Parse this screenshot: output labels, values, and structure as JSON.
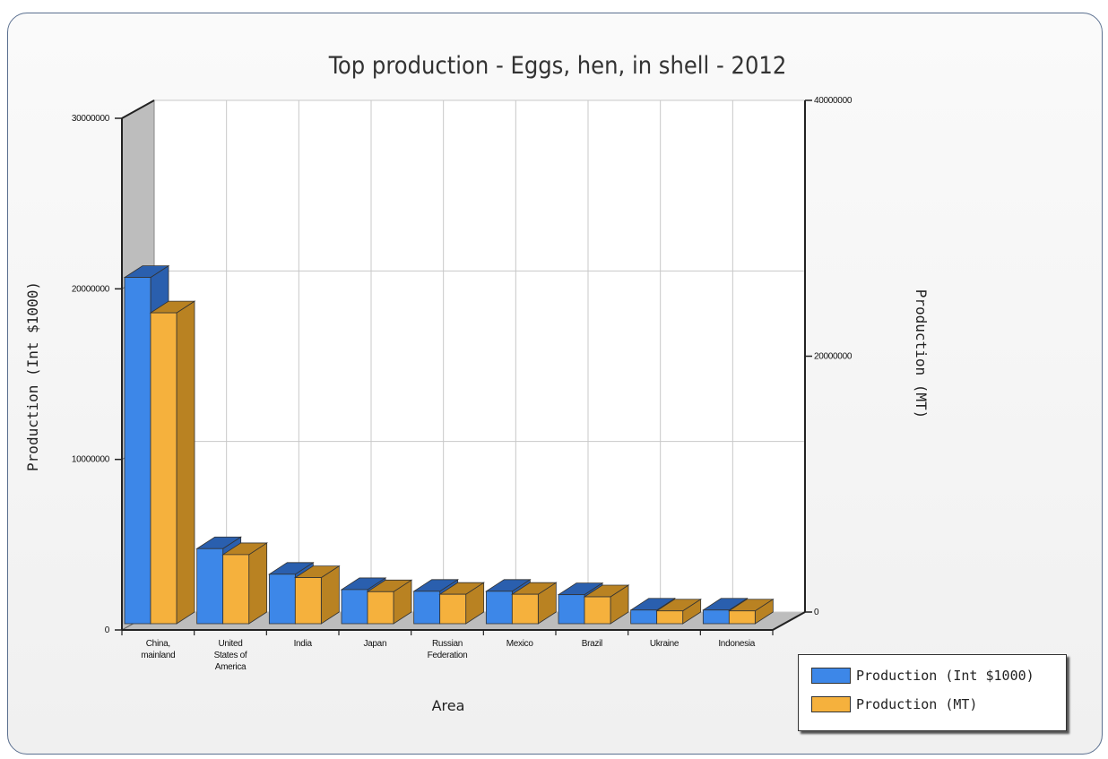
{
  "chart_data": {
    "type": "bar",
    "title": "Top production - Eggs, hen, in shell - 2012",
    "xlabel": "Area",
    "ylabel": "Production (Int $1000)",
    "y2label": "Production (MT)",
    "categories": [
      [
        "China,",
        "mainland"
      ],
      [
        "United",
        "States of",
        "America"
      ],
      [
        "India"
      ],
      [
        "Japan"
      ],
      [
        "Russian",
        "Federation"
      ],
      [
        "Mexico"
      ],
      [
        "Brazil"
      ],
      [
        "Ukraine"
      ],
      [
        "Indonesia"
      ]
    ],
    "series": [
      {
        "name": "Production (Int $1000)",
        "axis": "left",
        "color": "#3d87e8",
        "dark": "#2a5fae",
        "values": [
          20300000,
          4400000,
          2900000,
          2000000,
          1900000,
          1900000,
          1700000,
          800000,
          800000
        ]
      },
      {
        "name": "Production (MT)",
        "axis": "right",
        "color": "#f5b13d",
        "dark": "#b98222",
        "values": [
          24300000,
          5400000,
          3600000,
          2500000,
          2300000,
          2300000,
          2100000,
          1000000,
          1000000
        ]
      }
    ],
    "ylim": [
      0,
      30000000
    ],
    "y2lim": [
      0,
      40000000
    ],
    "yticks": [
      "0",
      "10000000",
      "20000000",
      "30000000"
    ],
    "y2ticks": [
      "0",
      "20000000",
      "40000000"
    ],
    "grid": true,
    "legend_position": "bottom-right"
  }
}
